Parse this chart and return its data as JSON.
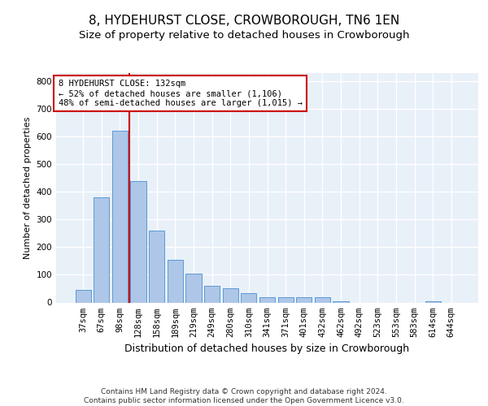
{
  "title": "8, HYDEHURST CLOSE, CROWBOROUGH, TN6 1EN",
  "subtitle": "Size of property relative to detached houses in Crowborough",
  "xlabel": "Distribution of detached houses by size in Crowborough",
  "ylabel": "Number of detached properties",
  "categories": [
    "37sqm",
    "67sqm",
    "98sqm",
    "128sqm",
    "158sqm",
    "189sqm",
    "219sqm",
    "249sqm",
    "280sqm",
    "310sqm",
    "341sqm",
    "371sqm",
    "401sqm",
    "432sqm",
    "462sqm",
    "492sqm",
    "523sqm",
    "553sqm",
    "583sqm",
    "614sqm",
    "644sqm"
  ],
  "values": [
    45,
    380,
    622,
    440,
    260,
    155,
    105,
    60,
    50,
    35,
    20,
    20,
    20,
    20,
    5,
    0,
    0,
    0,
    0,
    5,
    0
  ],
  "bar_color": "#aec6e8",
  "bar_edge_color": "#5b9bd5",
  "marker_line_color": "#cc0000",
  "annotation_text": "8 HYDEHURST CLOSE: 132sqm\n← 52% of detached houses are smaller (1,106)\n48% of semi-detached houses are larger (1,015) →",
  "annotation_box_color": "#ffffff",
  "annotation_box_edge_color": "#cc0000",
  "ylim": [
    0,
    830
  ],
  "yticks": [
    0,
    100,
    200,
    300,
    400,
    500,
    600,
    700,
    800
  ],
  "background_color": "#e8f0f8",
  "grid_color": "#ffffff",
  "footer_text": "Contains HM Land Registry data © Crown copyright and database right 2024.\nContains public sector information licensed under the Open Government Licence v3.0.",
  "title_fontsize": 11,
  "subtitle_fontsize": 9.5,
  "xlabel_fontsize": 9,
  "ylabel_fontsize": 8,
  "tick_fontsize": 7.5,
  "annotation_fontsize": 7.5,
  "footer_fontsize": 6.5
}
